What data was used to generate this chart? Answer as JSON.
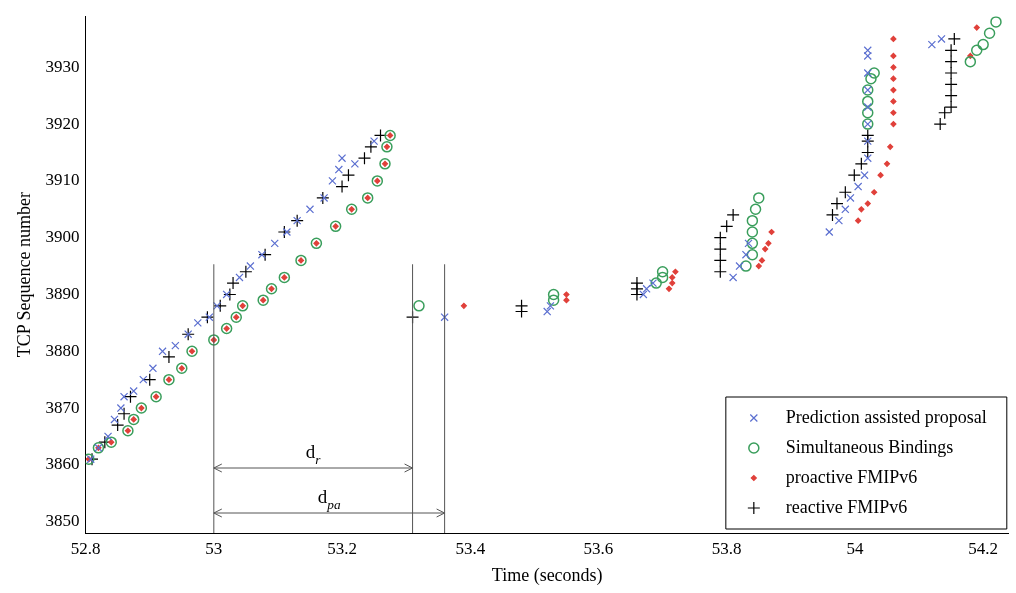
{
  "chart_data": {
    "type": "scatter",
    "xlabel": "Time (seconds)",
    "ylabel": "TCP Sequence number",
    "xlim": [
      52.8,
      54.24
    ],
    "ylim": [
      3848,
      3939
    ],
    "xticks": [
      52.8,
      53,
      53.2,
      53.4,
      53.6,
      53.8,
      54,
      54.2
    ],
    "yticks": [
      3850,
      3860,
      3870,
      3880,
      3890,
      3900,
      3910,
      3920,
      3930
    ],
    "grid": false,
    "legend": "bottom right",
    "series": [
      {
        "name": "Prediction assisted proposal",
        "color": "#5b6fd0",
        "marker": "x",
        "x": [
          52.808,
          52.82,
          52.835,
          52.845,
          52.855,
          52.86,
          52.875,
          52.89,
          52.905,
          52.92,
          52.94,
          52.96,
          52.975,
          52.993,
          53.005,
          53.02,
          53.04,
          53.057,
          53.075,
          53.095,
          53.114,
          53.13,
          53.15,
          53.172,
          53.185,
          53.195,
          53.2,
          53.22,
          53.25,
          53.36,
          53.52,
          53.525,
          53.67,
          53.675,
          53.685,
          53.81,
          53.82,
          53.83,
          53.834,
          53.96,
          53.975,
          53.985,
          53.993,
          54.005,
          54.015,
          54.02,
          54.02,
          54.02,
          54.02,
          54.02,
          54.02,
          54.02,
          54.02,
          54.12,
          54.135
        ],
        "values": [
          3861,
          3863,
          3865,
          3868,
          3870,
          3872,
          3873,
          3875,
          3877,
          3880,
          3881,
          3883,
          3885,
          3886,
          3888,
          3890,
          3893,
          3895,
          3897,
          3899,
          3901,
          3903,
          3905,
          3907,
          3910,
          3912,
          3914,
          3913,
          3917,
          3886,
          3887,
          3888,
          3890,
          3891,
          3892,
          3893,
          3895,
          3897,
          3899,
          3901,
          3903,
          3905,
          3907,
          3909,
          3911,
          3914,
          3917,
          3920,
          3923,
          3926,
          3929,
          3932,
          3933,
          3934,
          3935
        ]
      },
      {
        "name": "Simultaneous Bindings",
        "color": "#3a9e5c",
        "marker": "circle",
        "x": [
          52.805,
          52.82,
          52.84,
          52.866,
          52.875,
          52.887,
          52.91,
          52.93,
          52.95,
          52.966,
          53.0,
          53.02,
          53.035,
          53.045,
          53.077,
          53.09,
          53.11,
          53.136,
          53.16,
          53.19,
          53.215,
          53.24,
          53.255,
          53.267,
          53.27,
          53.275,
          53.32,
          53.53,
          53.53,
          53.69,
          53.7,
          53.7,
          53.83,
          53.84,
          53.84,
          53.84,
          53.84,
          53.845,
          53.85,
          54.02,
          54.02,
          54.02,
          54.02,
          54.025,
          54.03,
          54.18,
          54.19,
          54.2,
          54.21,
          54.22
        ],
        "values": [
          3861,
          3863,
          3864,
          3866,
          3868,
          3870,
          3872,
          3875,
          3877,
          3880,
          3882,
          3884,
          3886,
          3888,
          3889,
          3891,
          3893,
          3896,
          3899,
          3902,
          3905,
          3907,
          3910,
          3913,
          3916,
          3918,
          3888,
          3889,
          3890,
          3892,
          3893,
          3894,
          3895,
          3897,
          3899,
          3901,
          3903,
          3905,
          3907,
          3920,
          3922,
          3924,
          3926,
          3928,
          3929,
          3931,
          3933,
          3934,
          3936,
          3938
        ]
      },
      {
        "name": "proactive FMIPv6",
        "color": "#e0403a",
        "marker": "diamond",
        "x": [
          52.805,
          52.82,
          52.84,
          52.866,
          52.875,
          52.887,
          52.91,
          52.93,
          52.95,
          52.966,
          53.0,
          53.02,
          53.035,
          53.045,
          53.077,
          53.09,
          53.11,
          53.136,
          53.16,
          53.19,
          53.215,
          53.24,
          53.255,
          53.267,
          53.27,
          53.275,
          53.39,
          53.55,
          53.55,
          53.71,
          53.715,
          53.715,
          53.72,
          53.85,
          53.855,
          53.86,
          53.865,
          53.87,
          54.005,
          54.01,
          54.02,
          54.03,
          54.04,
          54.05,
          54.055,
          54.06,
          54.06,
          54.06,
          54.06,
          54.06,
          54.06,
          54.06,
          54.06,
          54.18,
          54.19
        ],
        "values": [
          3861,
          3863,
          3864,
          3866,
          3868,
          3870,
          3872,
          3875,
          3877,
          3880,
          3882,
          3884,
          3886,
          3888,
          3889,
          3891,
          3893,
          3896,
          3899,
          3902,
          3905,
          3907,
          3910,
          3913,
          3916,
          3918,
          3888,
          3889,
          3890,
          3891,
          3892,
          3893,
          3894,
          3895,
          3896,
          3898,
          3899,
          3901,
          3903,
          3905,
          3906,
          3908,
          3911,
          3913,
          3916,
          3920,
          3922,
          3924,
          3926,
          3928,
          3930,
          3932,
          3935,
          3932,
          3937
        ]
      },
      {
        "name": "reactive FMIPv6",
        "color": "#000000",
        "marker": "cross",
        "x": [
          52.81,
          52.83,
          52.85,
          52.86,
          52.87,
          52.9,
          52.93,
          52.96,
          52.99,
          53.01,
          53.025,
          53.03,
          53.05,
          53.08,
          53.11,
          53.13,
          53.17,
          53.2,
          53.21,
          53.235,
          53.245,
          53.26,
          53.31,
          53.48,
          53.48,
          53.66,
          53.66,
          53.66,
          53.79,
          53.79,
          53.79,
          53.79,
          53.8,
          53.81,
          53.965,
          53.972,
          53.985,
          53.999,
          54.01,
          54.02,
          54.02,
          54.02,
          54.133,
          54.14,
          54.15,
          54.15,
          54.15,
          54.15,
          54.15,
          54.15,
          54.155
        ],
        "values": [
          3861,
          3864,
          3867,
          3869,
          3872,
          3875,
          3879,
          3883,
          3886,
          3888,
          3890,
          3892,
          3894,
          3897,
          3901,
          3903,
          3907,
          3909,
          3911,
          3914,
          3916,
          3918,
          3886,
          3887,
          3888,
          3890,
          3891,
          3892,
          3894,
          3896,
          3898,
          3900,
          3902,
          3904,
          3904,
          3906,
          3908,
          3911,
          3913,
          3915,
          3917,
          3918,
          3920,
          3922,
          3923,
          3925,
          3927,
          3929,
          3931,
          3933,
          3935
        ]
      }
    ],
    "ref_lines": [
      {
        "axis": "x",
        "value": 53
      },
      {
        "axis": "x",
        "value": 53.31
      },
      {
        "axis": "x",
        "value": 53.36
      }
    ],
    "annotations": [
      "d$_{r}$",
      "d$_{pa}$"
    ]
  }
}
